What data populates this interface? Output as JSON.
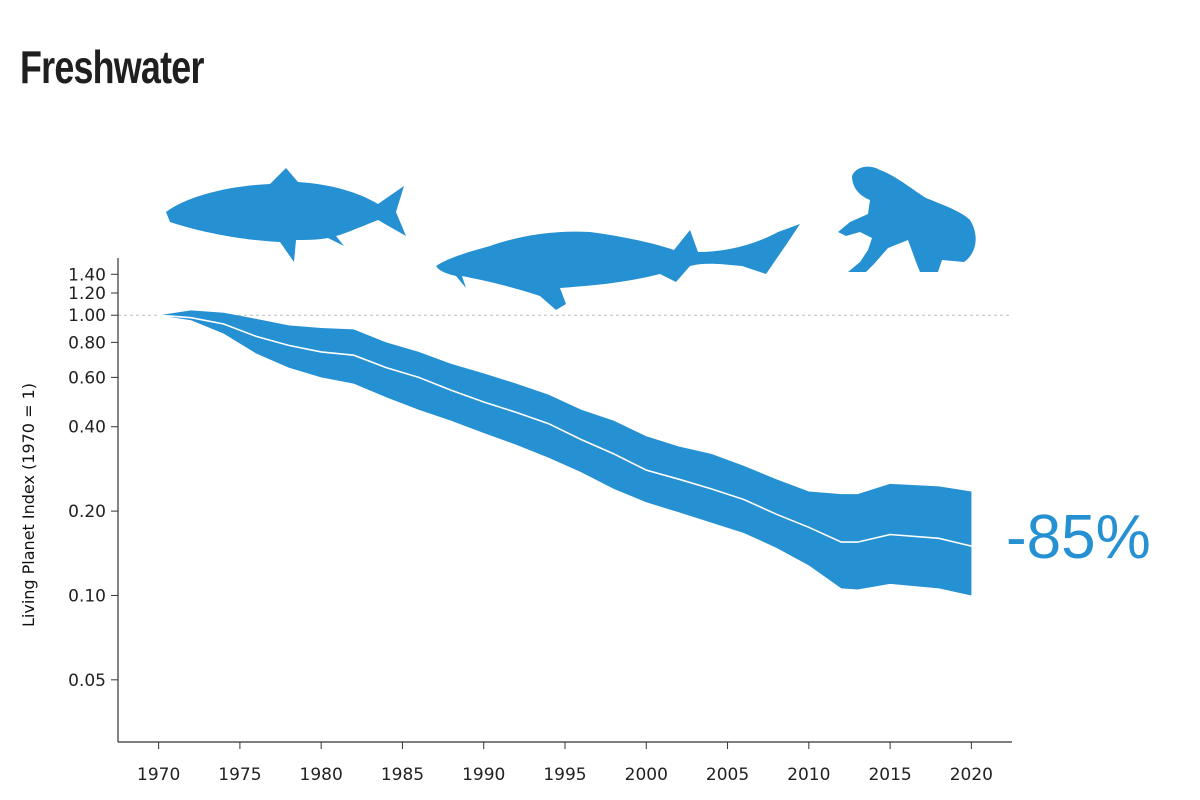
{
  "chart_data": {
    "type": "area",
    "title": "Freshwater",
    "xlabel": "",
    "ylabel": "Living Planet Index (1970 = 1)",
    "x_ticks": [
      "1970",
      "1975",
      "1980",
      "1985",
      "1990",
      "1995",
      "2000",
      "2005",
      "2010",
      "2015",
      "2020"
    ],
    "y_ticks": [
      "0.05",
      "0.10",
      "0.20",
      "0.40",
      "0.60",
      "0.80",
      "1.00",
      "1.20",
      "1.40"
    ],
    "y_scale": "log",
    "xlim": [
      1967.5,
      2022.5
    ],
    "ylim": [
      0.03,
      1.6
    ],
    "baseline": 1.0,
    "grid": false,
    "annotation": "-85%",
    "colors": {
      "band": "#2590d2",
      "line": "#ffffff",
      "annotation": "#2590d2",
      "baseline": "#bdbdbd",
      "axis": "#333333"
    },
    "icons": [
      "salmon-icon",
      "sturgeon-icon",
      "frog-icon"
    ],
    "x": [
      1970,
      1972,
      1974,
      1976,
      1978,
      1980,
      1982,
      1984,
      1986,
      1988,
      1990,
      1992,
      1994,
      1996,
      1998,
      2000,
      2002,
      2004,
      2006,
      2008,
      2010,
      2012,
      2013,
      2015,
      2018,
      2020
    ],
    "series": [
      {
        "values": [
          1.0,
          0.98,
          0.93,
          0.84,
          0.78,
          0.74,
          0.72,
          0.65,
          0.6,
          0.54,
          0.49,
          0.45,
          0.41,
          0.36,
          0.32,
          0.28,
          0.26,
          0.24,
          0.22,
          0.195,
          0.175,
          0.155,
          0.155,
          0.165,
          0.16,
          0.15
        ]
      }
    ],
    "upper": [
      1.0,
      1.04,
      1.02,
      0.97,
      0.92,
      0.9,
      0.89,
      0.8,
      0.74,
      0.67,
      0.62,
      0.57,
      0.52,
      0.46,
      0.42,
      0.37,
      0.34,
      0.32,
      0.29,
      0.26,
      0.235,
      0.23,
      0.23,
      0.25,
      0.245,
      0.235
    ],
    "lower": [
      1.0,
      0.96,
      0.86,
      0.73,
      0.65,
      0.6,
      0.57,
      0.51,
      0.46,
      0.42,
      0.38,
      0.345,
      0.31,
      0.275,
      0.24,
      0.215,
      0.198,
      0.182,
      0.167,
      0.148,
      0.128,
      0.106,
      0.105,
      0.11,
      0.106,
      0.1
    ]
  }
}
